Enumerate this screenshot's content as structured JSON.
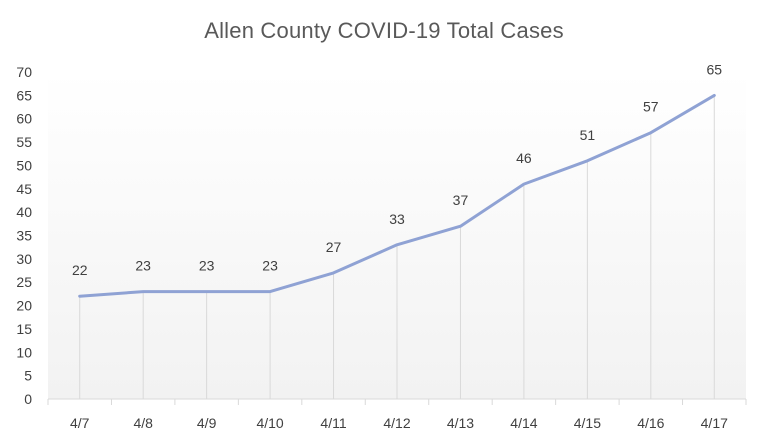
{
  "chart_data": {
    "type": "line",
    "title": "Allen County COVID-19 Total Cases",
    "xlabel": "",
    "ylabel": "",
    "categories": [
      "4/7",
      "4/8",
      "4/9",
      "4/10",
      "4/11",
      "4/12",
      "4/13",
      "4/14",
      "4/15",
      "4/16",
      "4/17"
    ],
    "series": [
      {
        "values": [
          22,
          23,
          23,
          23,
          27,
          33,
          37,
          46,
          51,
          57,
          65
        ]
      }
    ],
    "ylim": [
      0,
      70
    ],
    "yticks": [
      0,
      5,
      10,
      15,
      20,
      25,
      30,
      35,
      40,
      45,
      50,
      55,
      60,
      65,
      70
    ],
    "grid": false,
    "drop_lines": true,
    "data_labels": true,
    "legend": "none",
    "colors": {
      "line": "#8FA2D4",
      "drop_line": "#D9D9D9",
      "axis": "#D9D9D9",
      "text": "#404040",
      "title": "#595959",
      "plot_gradient_top": "#FFFFFF",
      "plot_gradient_bottom": "#F2F2F2"
    }
  }
}
